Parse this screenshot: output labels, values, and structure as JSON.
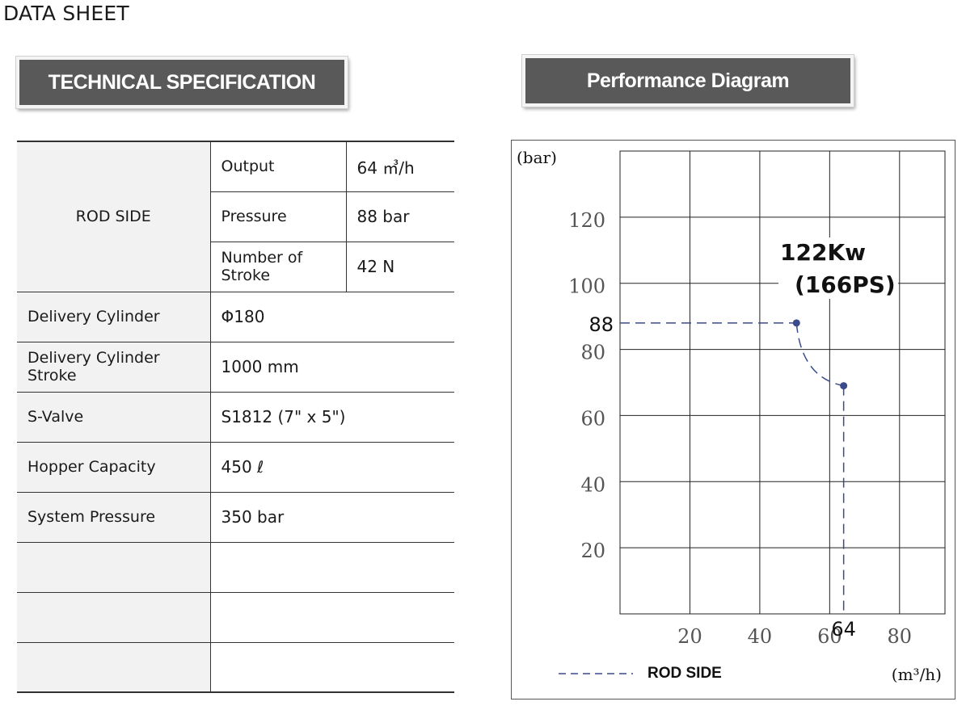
{
  "page": {
    "title": "DATA SHEET"
  },
  "headers": {
    "spec": "TECHNICAL SPECIFICATION",
    "performance": "Performance Diagram"
  },
  "spec_table": {
    "rod_side": {
      "label": "ROD SIDE",
      "rows": [
        {
          "label": "Output",
          "value": "64 ㎥/h"
        },
        {
          "label": "Pressure",
          "value": "88 bar"
        },
        {
          "label": "Number of Stroke",
          "value": "42 N"
        }
      ]
    },
    "rows": [
      {
        "label": "Delivery Cylinder",
        "value": "Φ180"
      },
      {
        "label": "Delivery Cylinder Stroke",
        "value": "1000 mm"
      },
      {
        "label": "S-Valve",
        "value": "S1812 (7\" x 5\")"
      },
      {
        "label": "Hopper Capacity",
        "value": "450 ℓ"
      },
      {
        "label": "System Pressure",
        "value": "350 bar"
      },
      {
        "label": "",
        "value": ""
      },
      {
        "label": "",
        "value": ""
      },
      {
        "label": "",
        "value": ""
      }
    ]
  },
  "chart_data": {
    "type": "line",
    "ylabel": "(bar)",
    "xlabel": "(m³/h)",
    "xlim": [
      0,
      93
    ],
    "ylim": [
      0,
      140
    ],
    "x_ticks": [
      20,
      40,
      60,
      80
    ],
    "y_ticks": [
      20,
      40,
      60,
      80,
      100,
      120
    ],
    "x_grid": [
      20,
      40,
      60,
      80
    ],
    "y_grid": [
      20,
      40,
      60,
      80,
      100,
      120
    ],
    "grid": true,
    "legend": {
      "position": "bottom-left",
      "label": "ROD SIDE"
    },
    "annotation": {
      "line1": "122Kw",
      "line2": "(166PS)"
    },
    "marker_labels": {
      "y": "88",
      "x": "64"
    },
    "series": [
      {
        "name": "ROD SIDE",
        "color": "#3b4a8a",
        "x": [
          50.5,
          64
        ],
        "y": [
          88,
          69
        ]
      }
    ]
  }
}
